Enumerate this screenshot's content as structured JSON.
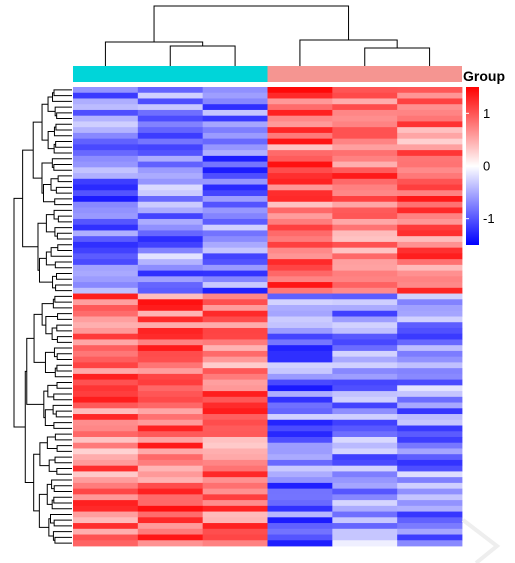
{
  "chart_data": {
    "type": "heatmap",
    "title": "",
    "xlabel": "",
    "ylabel": "",
    "n_columns": 6,
    "n_rows": 80,
    "column_groups": [
      {
        "color": "#00d5d9",
        "columns": [
          0,
          1,
          2
        ]
      },
      {
        "color": "#f59591",
        "columns": [
          3,
          4,
          5
        ]
      }
    ],
    "legend": {
      "title": "Group",
      "ticks": [
        "1",
        "0",
        "-1"
      ],
      "tick_values": [
        1,
        0,
        -1
      ],
      "range": [
        -1.5,
        1.5
      ],
      "colors": {
        "low": "#0000ff",
        "mid": "#ffffff",
        "high": "#ff0000"
      }
    },
    "row_blocks": [
      {
        "rows": 36,
        "column_means": [
          -0.8,
          -0.7,
          -0.8,
          0.9,
          0.8,
          0.8
        ]
      },
      {
        "rows": 44,
        "column_means": [
          0.8,
          0.9,
          0.8,
          -0.8,
          -0.6,
          -0.7
        ]
      }
    ],
    "values_note_min": -1.5,
    "values_note_max": 1.5
  }
}
